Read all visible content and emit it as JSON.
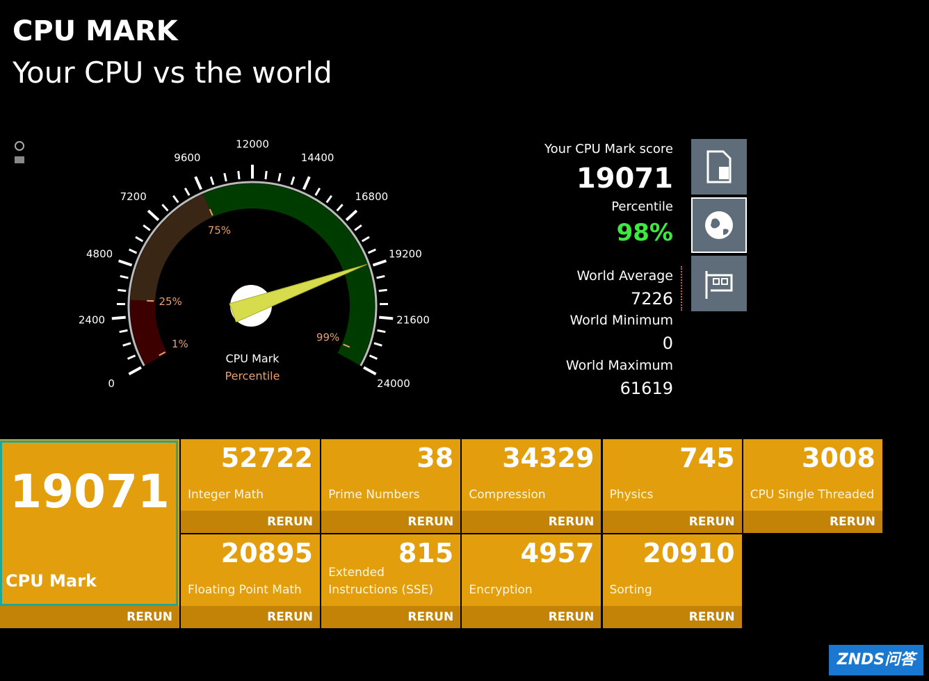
{
  "header": {
    "title": "CPU MARK",
    "subtitle": "Your CPU vs the world"
  },
  "gauge": {
    "ticks": [
      0,
      2400,
      4800,
      7200,
      9600,
      12000,
      14400,
      16800,
      19200,
      21600,
      24000
    ],
    "percentile_ticks": [
      {
        "value": 100,
        "label": "1%"
      },
      {
        "value": 3200,
        "label": "25%"
      },
      {
        "value": 9600,
        "label": "75%"
      },
      {
        "value": 23400,
        "label": "99%"
      }
    ],
    "caption": "CPU Mark",
    "caption_sub": "Percentile"
  },
  "summary": {
    "score_label": "Your CPU Mark score",
    "score": 19071,
    "percentile_label": "Percentile",
    "percentile": "98%",
    "average_label": "World Average",
    "average": 7226,
    "minimum_label": "World Minimum",
    "minimum": 0,
    "maximum_label": "World Maximum",
    "maximum": 61619
  },
  "tiles": {
    "main": {
      "value": 19071,
      "label": "CPU Mark",
      "action": "RERUN"
    },
    "tests": [
      {
        "value": 52722,
        "label": "Integer Math",
        "action": "RERUN"
      },
      {
        "value": 38,
        "label": "Prime Numbers",
        "action": "RERUN"
      },
      {
        "value": 34329,
        "label": "Compression",
        "action": "RERUN"
      },
      {
        "value": 745,
        "label": "Physics",
        "action": "RERUN"
      },
      {
        "value": 3008,
        "label": "CPU Single Threaded",
        "action": "RERUN"
      },
      {
        "value": 20895,
        "label": "Floating Point Math",
        "action": "RERUN"
      },
      {
        "value": 815,
        "label": "Extended Instructions (SSE)",
        "action": "RERUN"
      },
      {
        "value": 4957,
        "label": "Encryption",
        "action": "RERUN"
      },
      {
        "value": 20910,
        "label": "Sorting",
        "action": "RERUN"
      }
    ]
  },
  "watermark": "ZNDS问答"
}
